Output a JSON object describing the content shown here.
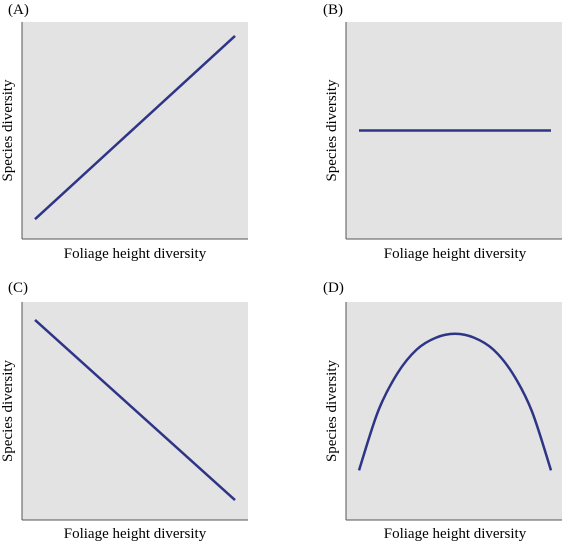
{
  "chart_data": [
    {
      "type": "line",
      "panel_label": "(A)",
      "xlabel": "Foliage height diversity",
      "ylabel": "Species diversity",
      "xlim": [
        0,
        1
      ],
      "ylim": [
        0,
        1
      ],
      "grid": false,
      "series": [
        {
          "x": [
            0,
            1
          ],
          "y": [
            0.05,
            0.98
          ]
        }
      ]
    },
    {
      "type": "line",
      "panel_label": "(B)",
      "xlabel": "Foliage height diversity",
      "ylabel": "Species diversity",
      "xlim": [
        0,
        1
      ],
      "ylim": [
        0,
        1
      ],
      "grid": false,
      "series": [
        {
          "x": [
            0,
            1
          ],
          "y": [
            0.5,
            0.5
          ]
        }
      ]
    },
    {
      "type": "line",
      "panel_label": "(C)",
      "xlabel": "Foliage height diversity",
      "ylabel": "Species diversity",
      "xlim": [
        0,
        1
      ],
      "ylim": [
        0,
        1
      ],
      "grid": false,
      "series": [
        {
          "x": [
            0,
            1
          ],
          "y": [
            0.96,
            0.05
          ]
        }
      ]
    },
    {
      "type": "line",
      "panel_label": "(D)",
      "xlabel": "Foliage height diversity",
      "ylabel": "Species diversity",
      "xlim": [
        0,
        1
      ],
      "ylim": [
        0,
        1
      ],
      "grid": false,
      "series": [
        {
          "x": [
            0,
            0.1,
            0.2,
            0.3,
            0.4,
            0.5,
            0.6,
            0.7,
            0.8,
            0.9,
            1.0
          ],
          "y": [
            0.2,
            0.5,
            0.69,
            0.81,
            0.87,
            0.89,
            0.87,
            0.81,
            0.69,
            0.5,
            0.2
          ]
        }
      ]
    }
  ],
  "colors": {
    "plot_background": "#e3e3e3",
    "line": "#2e3587",
    "axis": "#555555"
  }
}
